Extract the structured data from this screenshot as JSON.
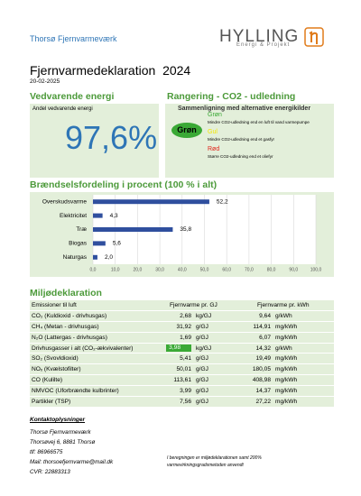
{
  "header": {
    "company": "Thorsø Fjernvarmeværk",
    "logo_name": "HYLLING",
    "logo_tagline": "Energi & Projekt"
  },
  "title": "Fjernvarmedeklaration",
  "year": "2024",
  "date": "20-02-2025",
  "renewable": {
    "heading": "Vedvarende energi",
    "label": "Andel vedvarende energi",
    "value": "97,6%"
  },
  "ranking": {
    "heading": "Rangering - CO2 - udledning",
    "subtitle": "Sammenligning med alternative energikilder",
    "result": "Grøn",
    "levels": [
      {
        "label": "Grøn",
        "color": "#3aa935",
        "text": "Mindre CO2-udledning end en luft til vand varmepumpe"
      },
      {
        "label": "Gul",
        "color": "#f2e600",
        "text": "Mindre CO2-udledning end et gasfyr"
      },
      {
        "label": "Rød",
        "color": "#e2231a",
        "text": "Større CO2-udledning end et oliefyr"
      }
    ]
  },
  "chart_data": {
    "type": "hbar",
    "title": "Brændselsfordeling i procent (100 % i alt)",
    "categories": [
      "Overskudsvarme",
      "Elektricitet",
      "Træ",
      "Biogas",
      "Naturgas"
    ],
    "values": [
      52.2,
      4.3,
      35.8,
      5.6,
      2.0
    ],
    "value_labels": [
      "52,2",
      "4,3",
      "35,8",
      "5,6",
      "2,0"
    ],
    "color": "#2f4f9e",
    "xlim": [
      0,
      100
    ],
    "xticks": [
      {
        "value": 0,
        "label": "0,0"
      },
      {
        "value": 10,
        "label": "10,0"
      },
      {
        "value": 20,
        "label": "20,0"
      },
      {
        "value": 30,
        "label": "30,0"
      },
      {
        "value": 40,
        "label": "40,0"
      },
      {
        "value": 50,
        "label": "50,0"
      },
      {
        "value": 60,
        "label": "60,0"
      },
      {
        "value": 70,
        "label": "70,0"
      },
      {
        "value": 80,
        "label": "80,0"
      },
      {
        "value": 90,
        "label": "90,0"
      },
      {
        "value": 100,
        "label": "100,0"
      }
    ],
    "grid": true
  },
  "environment": {
    "heading": "Miljødeklaration",
    "table": {
      "header": [
        "Emissioner til luft",
        "Fjernvarme pr. GJ",
        "Fjernvarme pr. kWh"
      ],
      "rows": [
        [
          "CO₂ (Kuldioxid - drivhusgas)",
          "2,68",
          "kg/GJ",
          "9,64",
          "g/kWh"
        ],
        [
          "CH₄ (Metan - drivhusgas)",
          "31,92",
          "g/GJ",
          "114,91",
          "mg/kWh"
        ],
        [
          "N₂O (Lattergas - drivhusgas)",
          "1,69",
          "g/GJ",
          "6,07",
          "mg/kWh"
        ],
        [
          "Drivhusgasser i alt (CO₂-ækvivalenter)",
          "3,98",
          "kg/GJ",
          "14,32",
          "g/kWh"
        ],
        [
          "SO₂ (Svovldioxid)",
          "5,41",
          "g/GJ",
          "19,49",
          "mg/kWh"
        ],
        [
          "NOₓ (Kvælstofilter)",
          "50,01",
          "g/GJ",
          "180,05",
          "mg/kWh"
        ],
        [
          "CO (Kulilte)",
          "113,61",
          "g/GJ",
          "408,98",
          "mg/kWh"
        ],
        [
          "NMVOC (Uforbrændte kulbrinter)",
          "3,99",
          "g/GJ",
          "14,37",
          "mg/kWh"
        ],
        [
          "Partikler (TSP)",
          "7,56",
          "g/GJ",
          "27,22",
          "mg/kWh"
        ]
      ]
    }
  },
  "contact": {
    "heading": "Kontaktoplysninger",
    "lines": [
      "Thorsø Fjernvarmeværk",
      "Thorsøvej 6, 8881 Thorsø",
      "tlf: 86966575",
      "Mail: thorsoefjernvarme@mail.dk",
      "CVR:  22883313"
    ]
  },
  "footnote": [
    "I beregningen er miljødeklarationen samt 200%",
    "varmevirkningsgradsmetoden anvendt"
  ]
}
